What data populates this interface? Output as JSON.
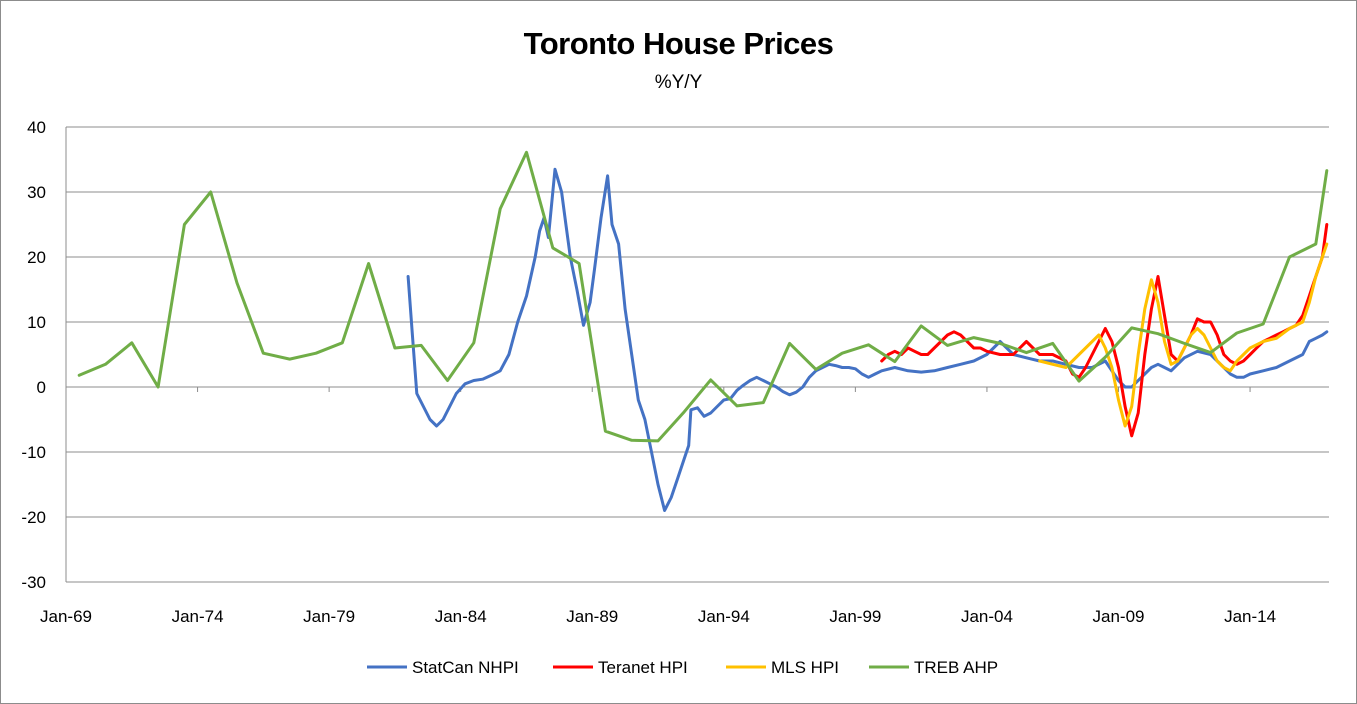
{
  "chart_data": {
    "type": "line",
    "title": "Toronto House Prices",
    "subtitle": "%Y/Y",
    "xlabel": "",
    "ylabel": "",
    "ylim": [
      -30,
      40
    ],
    "yticks": [
      40,
      30,
      20,
      10,
      0,
      -10,
      -20,
      -30
    ],
    "xlim": [
      "1969-01",
      "2017-01"
    ],
    "xticks": [
      "Jan-69",
      "Jan-74",
      "Jan-79",
      "Jan-84",
      "Jan-89",
      "Jan-94",
      "Jan-99",
      "Jan-04",
      "Jan-09",
      "Jan-14"
    ],
    "grid": "horizontal",
    "legend_position": "bottom",
    "series": [
      {
        "name": "StatCan NHPI",
        "color": "#4472c4",
        "points": [
          [
            "1982-01",
            17
          ],
          [
            "1982-03",
            8
          ],
          [
            "1982-05",
            -1
          ],
          [
            "1982-08",
            -3
          ],
          [
            "1982-11",
            -5
          ],
          [
            "1983-02",
            -6
          ],
          [
            "1983-05",
            -5
          ],
          [
            "1983-08",
            -3
          ],
          [
            "1983-11",
            -1
          ],
          [
            "1984-03",
            0.5
          ],
          [
            "1984-07",
            1
          ],
          [
            "1984-11",
            1.2
          ],
          [
            "1985-03",
            1.8
          ],
          [
            "1985-07",
            2.5
          ],
          [
            "1985-11",
            5
          ],
          [
            "1986-03",
            10
          ],
          [
            "1986-07",
            14
          ],
          [
            "1986-11",
            20
          ],
          [
            "1987-01",
            24
          ],
          [
            "1987-03",
            26
          ],
          [
            "1987-05",
            23
          ],
          [
            "1987-08",
            33.5
          ],
          [
            "1987-11",
            30
          ],
          [
            "1988-01",
            25
          ],
          [
            "1988-03",
            20
          ],
          [
            "1988-06",
            15
          ],
          [
            "1988-09",
            9.5
          ],
          [
            "1988-12",
            13
          ],
          [
            "1989-02",
            18
          ],
          [
            "1989-05",
            26
          ],
          [
            "1989-08",
            32.5
          ],
          [
            "1989-10",
            25
          ],
          [
            "1990-01",
            22
          ],
          [
            "1990-04",
            12
          ],
          [
            "1990-07",
            5
          ],
          [
            "1990-10",
            -2
          ],
          [
            "1991-01",
            -5
          ],
          [
            "1991-04",
            -10
          ],
          [
            "1991-07",
            -15
          ],
          [
            "1991-10",
            -19
          ],
          [
            "1992-01",
            -17
          ],
          [
            "1992-04",
            -14
          ],
          [
            "1992-07",
            -11
          ],
          [
            "1992-09",
            -9
          ],
          [
            "1992-10",
            -3.5
          ],
          [
            "1993-01",
            -3.2
          ],
          [
            "1993-04",
            -4.5
          ],
          [
            "1993-07",
            -4
          ],
          [
            "1993-10",
            -3
          ],
          [
            "1994-01",
            -2
          ],
          [
            "1994-04",
            -1.8
          ],
          [
            "1994-07",
            -0.5
          ],
          [
            "1994-10",
            0.3
          ],
          [
            "1995-01",
            1
          ],
          [
            "1995-04",
            1.5
          ],
          [
            "1995-07",
            1
          ],
          [
            "1995-10",
            0.5
          ],
          [
            "1996-01",
            0
          ],
          [
            "1996-04",
            -0.7
          ],
          [
            "1996-07",
            -1.2
          ],
          [
            "1996-10",
            -0.8
          ],
          [
            "1997-01",
            0
          ],
          [
            "1997-04",
            1.5
          ],
          [
            "1997-07",
            2.5
          ],
          [
            "1997-10",
            3
          ],
          [
            "1998-01",
            3.5
          ],
          [
            "1998-04",
            3.3
          ],
          [
            "1998-07",
            3
          ],
          [
            "1998-10",
            3
          ],
          [
            "1999-01",
            2.8
          ],
          [
            "1999-04",
            2
          ],
          [
            "1999-07",
            1.5
          ],
          [
            "1999-10",
            2
          ],
          [
            "2000-01",
            2.5
          ],
          [
            "2000-07",
            3
          ],
          [
            "2001-01",
            2.5
          ],
          [
            "2001-07",
            2.3
          ],
          [
            "2002-01",
            2.5
          ],
          [
            "2002-07",
            3
          ],
          [
            "2003-01",
            3.5
          ],
          [
            "2003-07",
            4
          ],
          [
            "2004-01",
            5
          ],
          [
            "2004-04",
            6
          ],
          [
            "2004-07",
            7
          ],
          [
            "2004-10",
            6
          ],
          [
            "2005-01",
            5
          ],
          [
            "2005-07",
            4.5
          ],
          [
            "2006-01",
            4
          ],
          [
            "2006-07",
            4
          ],
          [
            "2007-01",
            3.5
          ],
          [
            "2007-07",
            3
          ],
          [
            "2008-01",
            3
          ],
          [
            "2008-07",
            4
          ],
          [
            "2009-01",
            1
          ],
          [
            "2009-04",
            0
          ],
          [
            "2009-07",
            0
          ],
          [
            "2009-10",
            1
          ],
          [
            "2010-01",
            2
          ],
          [
            "2010-04",
            3
          ],
          [
            "2010-07",
            3.5
          ],
          [
            "2010-10",
            3
          ],
          [
            "2011-01",
            2.5
          ],
          [
            "2011-07",
            4.5
          ],
          [
            "2012-01",
            5.5
          ],
          [
            "2012-07",
            5
          ],
          [
            "2013-01",
            3
          ],
          [
            "2013-04",
            2
          ],
          [
            "2013-07",
            1.5
          ],
          [
            "2013-10",
            1.5
          ],
          [
            "2014-01",
            2
          ],
          [
            "2014-07",
            2.5
          ],
          [
            "2015-01",
            3
          ],
          [
            "2015-07",
            4
          ],
          [
            "2016-01",
            5
          ],
          [
            "2016-04",
            7
          ],
          [
            "2016-07",
            7.5
          ],
          [
            "2016-10",
            8
          ],
          [
            "2016-12",
            8.5
          ]
        ]
      },
      {
        "name": "Teranet HPI",
        "color": "#ff0000",
        "points": [
          [
            "2000-01",
            4
          ],
          [
            "2000-04",
            5
          ],
          [
            "2000-07",
            5.5
          ],
          [
            "2000-10",
            5
          ],
          [
            "2001-01",
            6
          ],
          [
            "2001-04",
            5.5
          ],
          [
            "2001-07",
            5
          ],
          [
            "2001-10",
            5
          ],
          [
            "2002-01",
            6
          ],
          [
            "2002-04",
            7
          ],
          [
            "2002-07",
            8
          ],
          [
            "2002-10",
            8.5
          ],
          [
            "2003-01",
            8
          ],
          [
            "2003-04",
            7
          ],
          [
            "2003-07",
            6
          ],
          [
            "2003-10",
            6
          ],
          [
            "2004-01",
            5.5
          ],
          [
            "2004-07",
            5
          ],
          [
            "2005-01",
            5
          ],
          [
            "2005-04",
            6
          ],
          [
            "2005-07",
            7
          ],
          [
            "2005-10",
            6
          ],
          [
            "2006-01",
            5
          ],
          [
            "2006-07",
            5
          ],
          [
            "2007-01",
            4
          ],
          [
            "2007-04",
            2
          ],
          [
            "2007-07",
            1.5
          ],
          [
            "2007-10",
            3
          ],
          [
            "2008-01",
            5
          ],
          [
            "2008-04",
            7
          ],
          [
            "2008-07",
            9
          ],
          [
            "2008-10",
            7
          ],
          [
            "2009-01",
            3
          ],
          [
            "2009-04",
            -3
          ],
          [
            "2009-07",
            -7.5
          ],
          [
            "2009-10",
            -4
          ],
          [
            "2010-01",
            5
          ],
          [
            "2010-04",
            12
          ],
          [
            "2010-07",
            17
          ],
          [
            "2010-10",
            11
          ],
          [
            "2011-01",
            5
          ],
          [
            "2011-04",
            4
          ],
          [
            "2011-07",
            6
          ],
          [
            "2011-10",
            8
          ],
          [
            "2012-01",
            10.5
          ],
          [
            "2012-04",
            10
          ],
          [
            "2012-07",
            10
          ],
          [
            "2012-10",
            8
          ],
          [
            "2013-01",
            5
          ],
          [
            "2013-04",
            4
          ],
          [
            "2013-07",
            3.5
          ],
          [
            "2013-10",
            4
          ],
          [
            "2014-01",
            5
          ],
          [
            "2014-04",
            6
          ],
          [
            "2014-07",
            7
          ],
          [
            "2014-10",
            7.5
          ],
          [
            "2015-01",
            8
          ],
          [
            "2015-04",
            8.5
          ],
          [
            "2015-07",
            9
          ],
          [
            "2015-10",
            9.5
          ],
          [
            "2016-01",
            11
          ],
          [
            "2016-04",
            14
          ],
          [
            "2016-07",
            17
          ],
          [
            "2016-10",
            20
          ],
          [
            "2016-12",
            25
          ]
        ]
      },
      {
        "name": "MLS HPI",
        "color": "#ffc000",
        "points": [
          [
            "2006-01",
            4
          ],
          [
            "2006-07",
            3.5
          ],
          [
            "2007-01",
            3
          ],
          [
            "2007-07",
            5
          ],
          [
            "2008-01",
            7
          ],
          [
            "2008-04",
            8
          ],
          [
            "2008-07",
            6
          ],
          [
            "2008-10",
            3
          ],
          [
            "2009-01",
            -2
          ],
          [
            "2009-04",
            -6
          ],
          [
            "2009-07",
            -3
          ],
          [
            "2009-10",
            5
          ],
          [
            "2010-01",
            12
          ],
          [
            "2010-04",
            16.5
          ],
          [
            "2010-07",
            13
          ],
          [
            "2010-10",
            7
          ],
          [
            "2011-01",
            3.5
          ],
          [
            "2011-04",
            4
          ],
          [
            "2011-07",
            6
          ],
          [
            "2011-10",
            8
          ],
          [
            "2012-01",
            9
          ],
          [
            "2012-04",
            8
          ],
          [
            "2012-07",
            6
          ],
          [
            "2012-10",
            4
          ],
          [
            "2013-01",
            3
          ],
          [
            "2013-04",
            2.5
          ],
          [
            "2013-07",
            4
          ],
          [
            "2013-10",
            5
          ],
          [
            "2014-01",
            6
          ],
          [
            "2014-07",
            7
          ],
          [
            "2015-01",
            7.5
          ],
          [
            "2015-07",
            9
          ],
          [
            "2016-01",
            10
          ],
          [
            "2016-04",
            13
          ],
          [
            "2016-07",
            17
          ],
          [
            "2016-10",
            20
          ],
          [
            "2016-12",
            22
          ]
        ]
      },
      {
        "name": "TREB AHP",
        "color": "#70ad47",
        "points": [
          [
            "1969-07",
            1.8
          ],
          [
            "1970-07",
            3.5
          ],
          [
            "1971-07",
            6.8
          ],
          [
            "1972-07",
            0
          ],
          [
            "1973-07",
            25
          ],
          [
            "1974-07",
            30
          ],
          [
            "1975-07",
            16
          ],
          [
            "1976-07",
            5.2
          ],
          [
            "1977-07",
            4.3
          ],
          [
            "1978-07",
            5.2
          ],
          [
            "1979-07",
            6.8
          ],
          [
            "1980-07",
            19
          ],
          [
            "1981-07",
            6
          ],
          [
            "1982-07",
            6.4
          ],
          [
            "1983-07",
            1
          ],
          [
            "1984-07",
            6.8
          ],
          [
            "1985-07",
            27.4
          ],
          [
            "1986-07",
            36.1
          ],
          [
            "1987-07",
            21.4
          ],
          [
            "1988-07",
            19
          ],
          [
            "1989-07",
            -6.8
          ],
          [
            "1990-07",
            -8.2
          ],
          [
            "1991-07",
            -8.3
          ],
          [
            "1992-07",
            -3.8
          ],
          [
            "1993-07",
            1.1
          ],
          [
            "1994-07",
            -2.9
          ],
          [
            "1995-07",
            -2.4
          ],
          [
            "1996-07",
            6.7
          ],
          [
            "1997-07",
            2.7
          ],
          [
            "1998-07",
            5.2
          ],
          [
            "1999-07",
            6.5
          ],
          [
            "2000-07",
            3.9
          ],
          [
            "2001-07",
            9.4
          ],
          [
            "2002-07",
            6.4
          ],
          [
            "2003-07",
            7.6
          ],
          [
            "2004-07",
            6.7
          ],
          [
            "2005-07",
            5.3
          ],
          [
            "2006-07",
            6.7
          ],
          [
            "2007-07",
            0.9
          ],
          [
            "2008-07",
            4.6
          ],
          [
            "2009-07",
            9.1
          ],
          [
            "2010-07",
            8.2
          ],
          [
            "2011-07",
            6.7
          ],
          [
            "2012-07",
            5.3
          ],
          [
            "2013-07",
            8.3
          ],
          [
            "2014-07",
            9.7
          ],
          [
            "2015-07",
            20
          ],
          [
            "2016-07",
            22
          ],
          [
            "2016-12",
            33.3
          ]
        ]
      }
    ]
  }
}
